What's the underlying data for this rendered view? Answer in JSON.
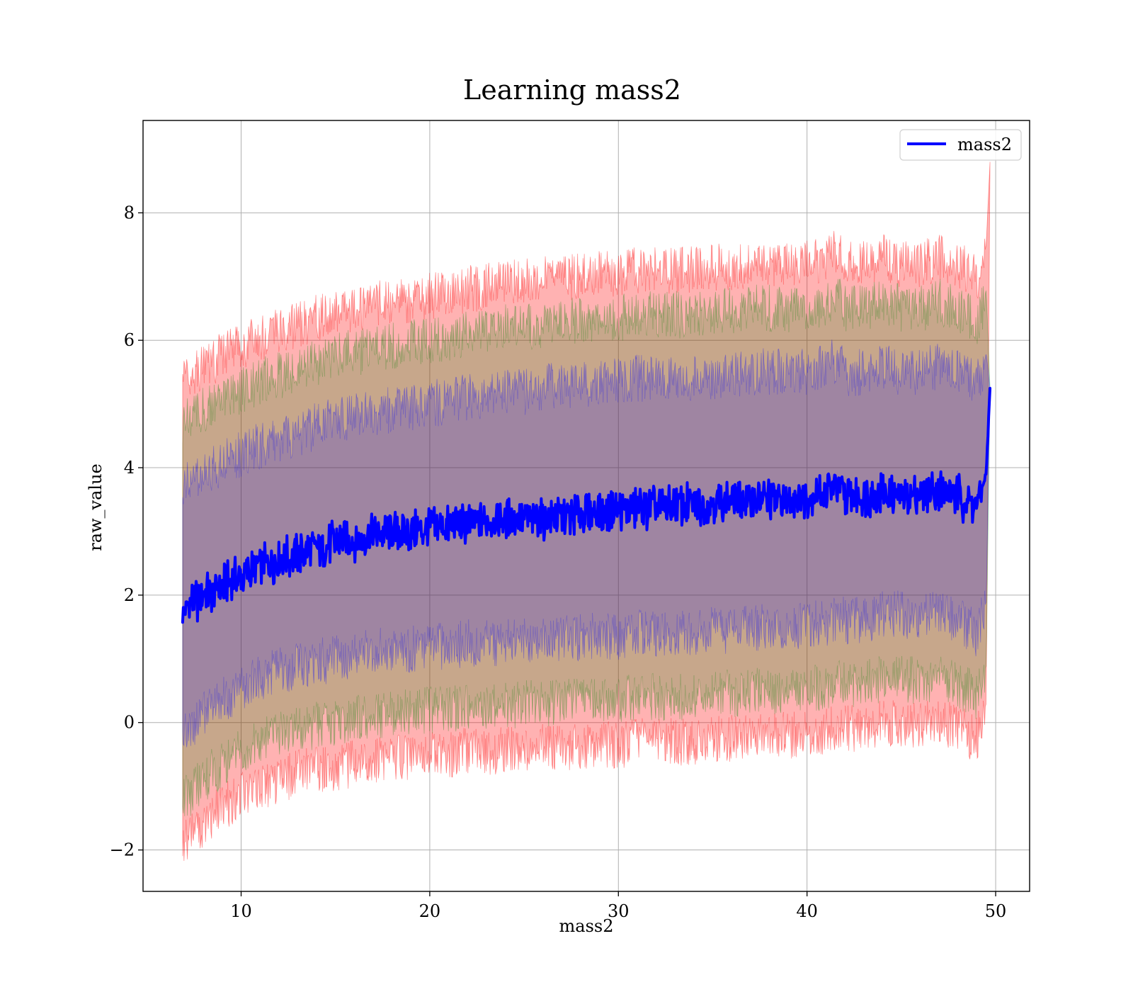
{
  "chart_data": {
    "type": "line",
    "title": "Learning mass2",
    "xlabel": "mass2",
    "ylabel": "raw_value",
    "xlim": [
      4.8,
      51.8
    ],
    "ylim": [
      -2.65,
      9.45
    ],
    "xticks": [
      10,
      20,
      30,
      40,
      50
    ],
    "yticks": [
      -2,
      0,
      2,
      4,
      6,
      8
    ],
    "grid": true,
    "legend_position": "top-right",
    "x_range": [
      6.9,
      49.7
    ],
    "series": [
      {
        "name": "mass2",
        "color": "#0000ff",
        "x": [
          6.9,
          7.5,
          8.0,
          9.0,
          10.0,
          11.0,
          12.0,
          13.0,
          14.0,
          15.0,
          16.0,
          17.0,
          18.0,
          19.0,
          20.0,
          21.0,
          22.0,
          23.0,
          24.0,
          25.0,
          26.0,
          27.0,
          28.0,
          29.0,
          30.0,
          31.0,
          32.0,
          33.0,
          34.0,
          35.0,
          36.0,
          37.0,
          38.0,
          39.0,
          40.0,
          41.0,
          41.5,
          42.0,
          43.0,
          44.0,
          45.0,
          46.0,
          47.0,
          48.0,
          49.0,
          49.3,
          49.5,
          49.7
        ],
        "values": [
          1.75,
          1.9,
          2.0,
          2.15,
          2.3,
          2.45,
          2.55,
          2.65,
          2.75,
          2.82,
          2.88,
          2.95,
          3.0,
          3.02,
          3.05,
          3.1,
          3.12,
          3.15,
          3.18,
          3.2,
          3.22,
          3.25,
          3.28,
          3.3,
          3.32,
          3.35,
          3.37,
          3.4,
          3.42,
          3.45,
          3.47,
          3.5,
          3.52,
          3.52,
          3.55,
          3.6,
          3.75,
          3.55,
          3.55,
          3.6,
          3.55,
          3.6,
          3.65,
          3.55,
          3.4,
          3.7,
          3.9,
          5.25
        ]
      }
    ],
    "bands": [
      {
        "color": "#ff0000",
        "opacity": 0.3,
        "lower": [
          -1.9,
          -1.75,
          -1.6,
          -1.35,
          -1.15,
          -1.0,
          -0.9,
          -0.8,
          -0.75,
          -0.7,
          -0.65,
          -0.6,
          -0.55,
          -0.55,
          -0.5,
          -0.5,
          -0.45,
          -0.45,
          -0.45,
          -0.4,
          -0.4,
          -0.4,
          -0.35,
          -0.35,
          -0.35,
          -0.3,
          -0.3,
          -0.3,
          -0.3,
          -0.25,
          -0.25,
          -0.2,
          -0.2,
          -0.2,
          -0.15,
          -0.15,
          -0.1,
          -0.1,
          -0.1,
          0.0,
          0.0,
          -0.05,
          0.0,
          -0.05,
          -0.3,
          0.1,
          0.3,
          8.8
        ],
        "upper": [
          5.4,
          5.5,
          5.6,
          5.75,
          5.9,
          6.05,
          6.15,
          6.25,
          6.35,
          6.45,
          6.5,
          6.55,
          6.6,
          6.65,
          6.7,
          6.75,
          6.8,
          6.85,
          6.9,
          6.9,
          6.95,
          7.0,
          7.0,
          7.05,
          7.05,
          7.1,
          7.1,
          7.1,
          7.1,
          7.15,
          7.15,
          7.2,
          7.2,
          7.2,
          7.2,
          7.3,
          7.4,
          7.2,
          7.2,
          7.3,
          7.2,
          7.2,
          7.3,
          7.2,
          7.0,
          7.2,
          7.5,
          8.8
        ]
      },
      {
        "color": "#008000",
        "opacity": 0.22,
        "lower": [
          -1.2,
          -1.05,
          -0.9,
          -0.65,
          -0.45,
          -0.3,
          -0.2,
          -0.1,
          -0.05,
          0.0,
          0.05,
          0.1,
          0.15,
          0.15,
          0.2,
          0.2,
          0.25,
          0.25,
          0.25,
          0.3,
          0.3,
          0.3,
          0.35,
          0.35,
          0.35,
          0.4,
          0.4,
          0.4,
          0.4,
          0.45,
          0.45,
          0.5,
          0.5,
          0.5,
          0.55,
          0.55,
          0.6,
          0.6,
          0.6,
          0.7,
          0.7,
          0.65,
          0.7,
          0.6,
          0.4,
          0.7,
          0.9,
          5.25
        ],
        "upper": [
          4.7,
          4.8,
          4.9,
          5.05,
          5.2,
          5.35,
          5.45,
          5.55,
          5.65,
          5.75,
          5.8,
          5.85,
          5.9,
          5.95,
          6.0,
          6.05,
          6.1,
          6.15,
          6.2,
          6.2,
          6.25,
          6.3,
          6.3,
          6.35,
          6.35,
          6.4,
          6.4,
          6.4,
          6.4,
          6.45,
          6.45,
          6.5,
          6.5,
          6.5,
          6.5,
          6.6,
          6.7,
          6.5,
          6.5,
          6.6,
          6.5,
          6.5,
          6.6,
          6.5,
          6.3,
          6.5,
          6.8,
          5.25
        ]
      },
      {
        "color": "#0000ff",
        "opacity": 0.2,
        "lower": [
          -0.2,
          -0.05,
          0.1,
          0.35,
          0.55,
          0.7,
          0.8,
          0.9,
          0.95,
          1.0,
          1.05,
          1.1,
          1.15,
          1.15,
          1.2,
          1.2,
          1.25,
          1.25,
          1.25,
          1.3,
          1.3,
          1.3,
          1.35,
          1.35,
          1.35,
          1.4,
          1.4,
          1.4,
          1.4,
          1.45,
          1.45,
          1.5,
          1.5,
          1.5,
          1.55,
          1.55,
          1.6,
          1.6,
          1.6,
          1.7,
          1.7,
          1.65,
          1.7,
          1.6,
          1.4,
          1.7,
          1.9,
          5.25
        ],
        "upper": [
          3.7,
          3.8,
          3.9,
          4.05,
          4.2,
          4.35,
          4.45,
          4.55,
          4.65,
          4.75,
          4.8,
          4.85,
          4.9,
          4.95,
          5.0,
          5.05,
          5.1,
          5.15,
          5.2,
          5.2,
          5.25,
          5.3,
          5.3,
          5.35,
          5.35,
          5.4,
          5.4,
          5.4,
          5.4,
          5.45,
          5.45,
          5.5,
          5.5,
          5.5,
          5.5,
          5.6,
          5.7,
          5.5,
          5.5,
          5.6,
          5.5,
          5.5,
          5.6,
          5.5,
          5.3,
          5.5,
          5.8,
          5.25
        ]
      }
    ]
  }
}
